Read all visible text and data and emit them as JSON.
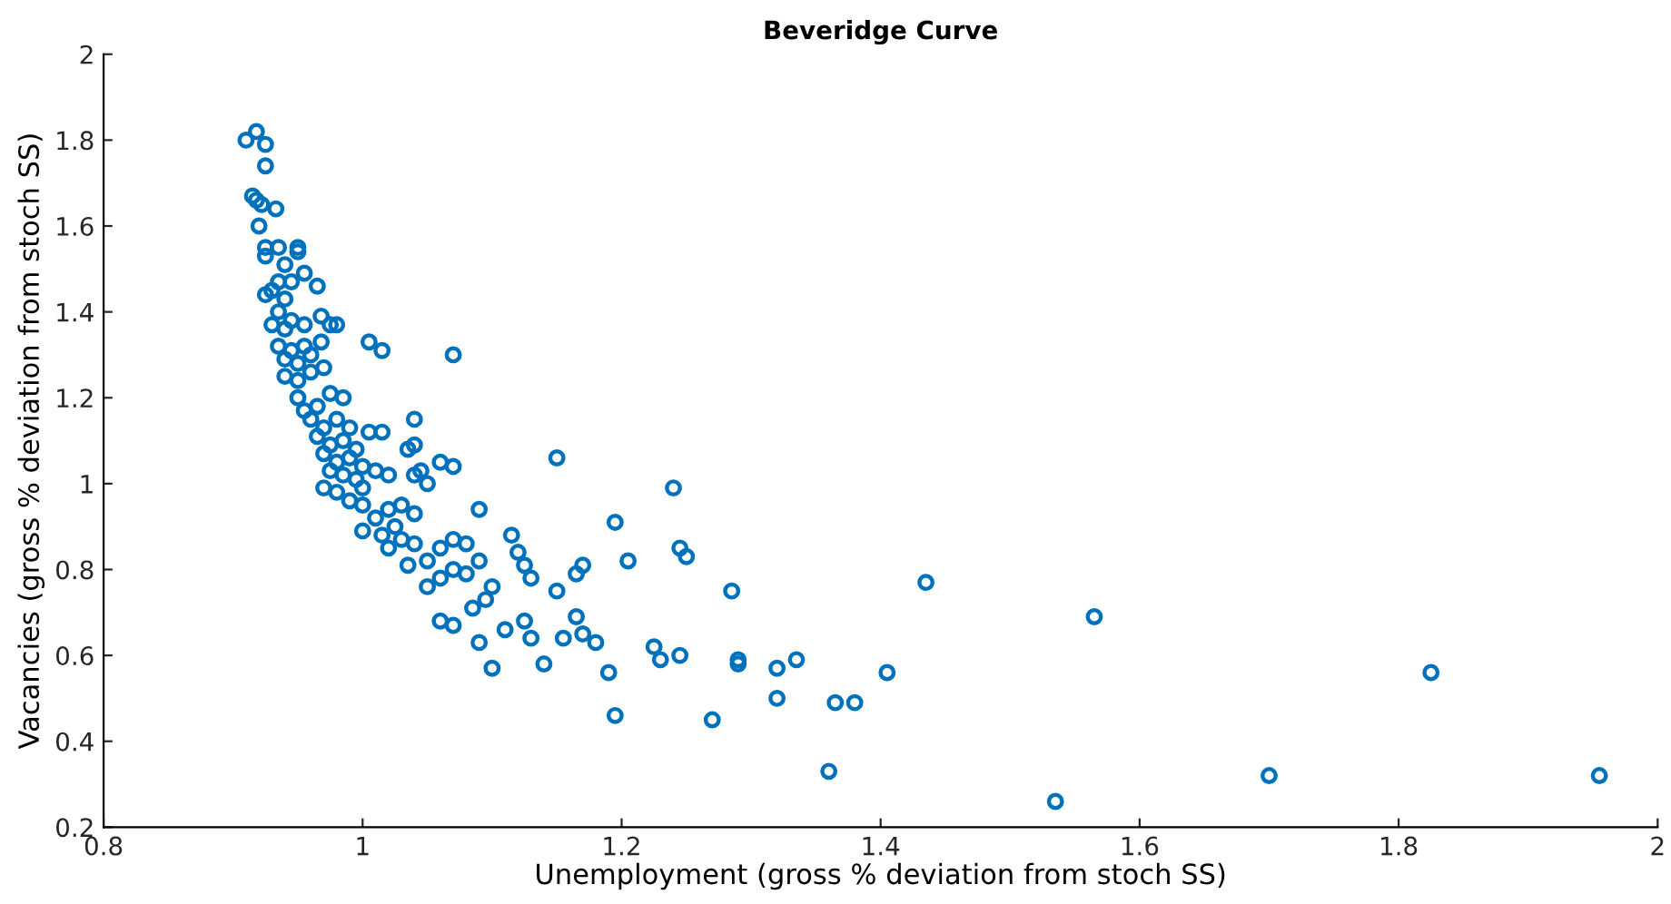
{
  "chart_data": {
    "type": "scatter",
    "title": "Beveridge Curve",
    "xlabel": "Unemployment (gross % deviation from stoch SS)",
    "ylabel": "Vacancies (gross % deviation from stoch SS)",
    "xlim": [
      0.8,
      2
    ],
    "ylim": [
      0.2,
      2
    ],
    "xticks": [
      0.8,
      1,
      1.2,
      1.4,
      1.6,
      1.8,
      2
    ],
    "yticks": [
      0.2,
      0.4,
      0.6,
      0.8,
      1,
      1.2,
      1.4,
      1.6,
      1.8,
      2
    ],
    "grid": false,
    "marker": "circle",
    "series": [
      {
        "color": "#0072bd",
        "x": [
          0.91,
          0.918,
          0.925,
          0.925,
          0.915,
          0.918,
          0.922,
          0.933,
          0.92,
          0.925,
          0.935,
          0.925,
          0.95,
          0.95,
          0.94,
          0.955,
          0.935,
          0.93,
          0.925,
          0.945,
          0.965,
          0.94,
          0.935,
          0.93,
          0.94,
          0.945,
          0.955,
          0.968,
          0.98,
          0.935,
          0.945,
          0.955,
          0.968,
          0.94,
          0.95,
          0.96,
          0.94,
          0.95,
          0.96,
          0.97,
          0.95,
          0.955,
          0.965,
          0.975,
          0.985,
          0.96,
          0.97,
          0.98,
          0.99,
          0.965,
          0.975,
          0.985,
          0.995,
          1.005,
          1.015,
          0.97,
          0.98,
          0.99,
          1.0,
          0.975,
          0.985,
          0.995,
          1.01,
          0.97,
          0.98,
          0.99,
          1.0,
          1.02,
          1.04,
          1.05,
          1.0,
          1.01,
          1.02,
          1.03,
          1.04,
          1.0,
          1.015,
          1.025,
          1.03,
          1.04,
          1.02,
          1.035,
          1.05,
          1.06,
          1.07,
          1.08,
          1.05,
          1.06,
          1.07,
          1.08,
          1.09,
          1.06,
          1.07,
          1.085,
          1.095,
          1.1,
          1.09,
          1.1,
          1.11,
          1.125,
          1.13,
          1.12,
          1.125,
          1.13,
          1.14,
          1.15,
          1.155,
          1.165,
          1.17,
          1.165,
          1.17,
          1.18,
          1.19,
          1.195,
          1.195,
          1.205,
          1.225,
          1.23,
          1.24,
          1.245,
          1.25,
          1.245,
          1.27,
          1.285,
          1.29,
          1.29,
          1.32,
          1.32,
          1.335,
          1.36,
          1.365,
          1.38,
          1.405,
          1.435,
          1.535,
          1.565,
          1.7,
          1.825,
          1.955,
          1.005,
          1.015,
          1.07,
          0.975,
          1.15,
          1.04,
          1.04,
          1.06,
          1.07,
          1.035,
          1.09,
          1.115,
          1.045
        ],
        "values": [
          1.8,
          1.82,
          1.79,
          1.74,
          1.67,
          1.66,
          1.65,
          1.64,
          1.6,
          1.55,
          1.55,
          1.53,
          1.55,
          1.54,
          1.51,
          1.49,
          1.47,
          1.45,
          1.44,
          1.47,
          1.46,
          1.43,
          1.4,
          1.37,
          1.36,
          1.38,
          1.37,
          1.39,
          1.37,
          1.32,
          1.31,
          1.32,
          1.33,
          1.29,
          1.28,
          1.3,
          1.25,
          1.24,
          1.26,
          1.27,
          1.2,
          1.17,
          1.18,
          1.21,
          1.2,
          1.15,
          1.13,
          1.15,
          1.13,
          1.11,
          1.09,
          1.1,
          1.08,
          1.12,
          1.12,
          1.07,
          1.05,
          1.06,
          1.04,
          1.03,
          1.02,
          1.01,
          1.03,
          0.99,
          0.98,
          0.96,
          0.99,
          1.02,
          1.02,
          1.0,
          0.95,
          0.92,
          0.94,
          0.95,
          0.93,
          0.89,
          0.88,
          0.9,
          0.87,
          0.86,
          0.85,
          0.81,
          0.82,
          0.85,
          0.87,
          0.86,
          0.76,
          0.78,
          0.8,
          0.79,
          0.82,
          0.68,
          0.67,
          0.71,
          0.73,
          0.76,
          0.63,
          0.57,
          0.66,
          0.68,
          0.64,
          0.84,
          0.81,
          0.78,
          0.58,
          0.75,
          0.64,
          0.69,
          0.65,
          0.79,
          0.81,
          0.63,
          0.56,
          0.46,
          0.91,
          0.82,
          0.62,
          0.59,
          0.99,
          0.85,
          0.83,
          0.6,
          0.45,
          0.75,
          0.59,
          0.58,
          0.57,
          0.5,
          0.59,
          0.33,
          0.49,
          0.49,
          0.56,
          0.77,
          0.26,
          0.69,
          0.32,
          0.56,
          0.32,
          1.33,
          1.31,
          1.3,
          1.37,
          1.06,
          1.15,
          1.09,
          1.05,
          1.04,
          1.08,
          0.94,
          0.88,
          1.03
        ]
      }
    ]
  }
}
